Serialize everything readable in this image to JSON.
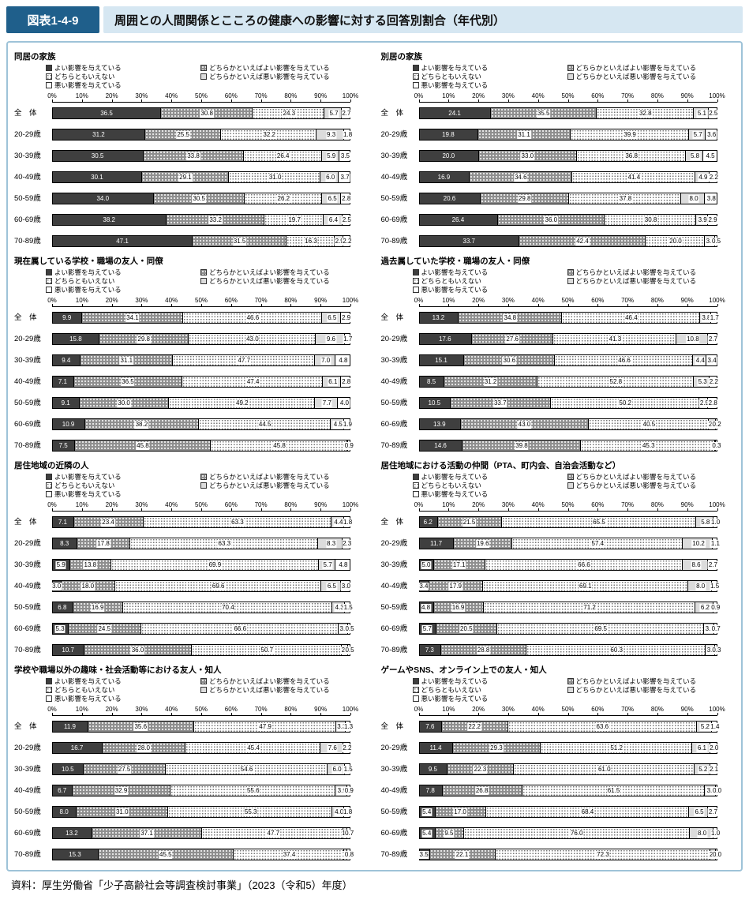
{
  "header": {
    "figure_label": "図表1-4-9",
    "title": "周囲との人間関係とこころの健康への影響に対する回答別割合（年代別）"
  },
  "source": "資料：厚生労働省「少子高齢社会等調査検討事業」（2023（令和5）年度）",
  "colors": {
    "header_box": "#1f5f8b",
    "header_strip": "#d6e7f2",
    "panel_border": "#9ec3d8",
    "segment_dark": "#3f3f3f",
    "segment_dot_gray": "#8f8f8f",
    "segment_light": "#dcdcdc"
  },
  "legend": {
    "items": [
      {
        "label": "よい影響を与えている",
        "pattern": "dark"
      },
      {
        "label": "どちらかといえばよい影響を与えている",
        "pattern": "dots-on-gray"
      },
      {
        "label": "どちらともいえない",
        "pattern": "stipple"
      },
      {
        "label": "どちらかといえば悪い影響を与えている",
        "pattern": "light-gray"
      },
      {
        "label": "悪い影響を与えている",
        "pattern": "white"
      }
    ]
  },
  "axis": {
    "ticks": [
      "0%",
      "10%",
      "20%",
      "30%",
      "40%",
      "50%",
      "60%",
      "70%",
      "80%",
      "90%",
      "100%"
    ]
  },
  "categories": [
    "全　体",
    "20-29歳",
    "30-39歳",
    "40-49歳",
    "50-59歳",
    "60-69歳",
    "70-89歳"
  ],
  "chart_data": [
    {
      "type": "bar",
      "stacked": true,
      "orientation": "horizontal",
      "xlim": [
        0,
        100
      ],
      "x_unit": "%",
      "title": "同居の家族",
      "categories": [
        "全　体",
        "20-29歳",
        "30-39歳",
        "40-49歳",
        "50-59歳",
        "60-69歳",
        "70-89歳"
      ],
      "series": [
        {
          "name": "よい影響を与えている",
          "values": [
            36.5,
            31.2,
            30.5,
            30.1,
            34.0,
            38.2,
            47.1
          ]
        },
        {
          "name": "どちらかといえばよい影響を与えている",
          "values": [
            30.8,
            25.5,
            33.8,
            29.1,
            30.5,
            33.2,
            31.5
          ]
        },
        {
          "name": "どちらともいえない",
          "values": [
            24.3,
            32.2,
            26.4,
            31.0,
            26.2,
            19.7,
            16.3
          ]
        },
        {
          "name": "どちらかといえば悪い影響を与えている",
          "values": [
            5.7,
            9.3,
            5.9,
            6.0,
            6.5,
            6.4,
            2.9
          ]
        },
        {
          "name": "悪い影響を与えている",
          "values": [
            2.7,
            1.8,
            3.5,
            3.7,
            2.8,
            2.5,
            2.2
          ]
        }
      ]
    },
    {
      "type": "bar",
      "stacked": true,
      "orientation": "horizontal",
      "xlim": [
        0,
        100
      ],
      "x_unit": "%",
      "title": "別居の家族",
      "categories": [
        "全　体",
        "20-29歳",
        "30-39歳",
        "40-49歳",
        "50-59歳",
        "60-69歳",
        "70-89歳"
      ],
      "series": [
        {
          "name": "よい影響を与えている",
          "values": [
            24.1,
            19.8,
            20.0,
            16.9,
            20.6,
            26.4,
            33.7
          ]
        },
        {
          "name": "どちらかといえばよい影響を与えている",
          "values": [
            35.5,
            31.1,
            33.0,
            34.6,
            29.8,
            36.0,
            42.4
          ]
        },
        {
          "name": "どちらともいえない",
          "values": [
            32.8,
            39.9,
            36.8,
            41.4,
            37.8,
            30.8,
            20.0
          ]
        },
        {
          "name": "どちらかといえば悪い影響を与えている",
          "values": [
            5.1,
            5.7,
            5.8,
            4.9,
            8.0,
            3.9,
            3.4
          ]
        },
        {
          "name": "悪い影響を与えている",
          "values": [
            2.5,
            3.6,
            4.5,
            2.2,
            3.8,
            2.9,
            0.5
          ]
        }
      ]
    },
    {
      "type": "bar",
      "stacked": true,
      "orientation": "horizontal",
      "xlim": [
        0,
        100
      ],
      "x_unit": "%",
      "title": "現在属している学校・職場の友人・同僚",
      "categories": [
        "全　体",
        "20-29歳",
        "30-39歳",
        "40-49歳",
        "50-59歳",
        "60-69歳",
        "70-89歳"
      ],
      "series": [
        {
          "name": "よい影響を与えている",
          "values": [
            9.9,
            15.8,
            9.4,
            7.1,
            9.1,
            10.9,
            7.5
          ]
        },
        {
          "name": "どちらかといえばよい影響を与えている",
          "values": [
            34.1,
            29.8,
            31.1,
            36.5,
            30.0,
            38.2,
            45.8
          ]
        },
        {
          "name": "どちらともいえない",
          "values": [
            46.6,
            43.0,
            47.7,
            47.4,
            49.2,
            44.5,
            45.8
          ]
        },
        {
          "name": "どちらかといえば悪い影響を与えている",
          "values": [
            6.5,
            9.6,
            7.0,
            6.1,
            7.7,
            4.5,
            0.0
          ]
        },
        {
          "name": "悪い影響を与えている",
          "values": [
            2.9,
            1.7,
            4.8,
            2.8,
            4.0,
            1.9,
            0.9
          ]
        }
      ]
    },
    {
      "type": "bar",
      "stacked": true,
      "orientation": "horizontal",
      "xlim": [
        0,
        100
      ],
      "x_unit": "%",
      "title": "過去属していた学校・職場の友人・同僚",
      "categories": [
        "全　体",
        "20-29歳",
        "30-39歳",
        "40-49歳",
        "50-59歳",
        "60-69歳",
        "70-89歳"
      ],
      "series": [
        {
          "name": "よい影響を与えている",
          "values": [
            13.2,
            17.6,
            15.1,
            8.5,
            10.5,
            13.9,
            14.6
          ]
        },
        {
          "name": "どちらかといえばよい影響を与えている",
          "values": [
            34.8,
            27.6,
            30.6,
            31.2,
            33.7,
            43.0,
            39.8
          ]
        },
        {
          "name": "どちらともいえない",
          "values": [
            46.4,
            41.3,
            46.6,
            52.8,
            50.2,
            40.5,
            45.3
          ]
        },
        {
          "name": "どちらかといえば悪い影響を与えている",
          "values": [
            3.8,
            10.8,
            4.4,
            5.3,
            2.9,
            2.3,
            0.0
          ]
        },
        {
          "name": "悪い影響を与えている",
          "values": [
            1.7,
            2.7,
            3.4,
            2.2,
            2.8,
            0.2,
            0.3
          ]
        }
      ]
    },
    {
      "type": "bar",
      "stacked": true,
      "orientation": "horizontal",
      "xlim": [
        0,
        100
      ],
      "x_unit": "%",
      "title": "居住地域の近隣の人",
      "categories": [
        "全　体",
        "20-29歳",
        "30-39歳",
        "40-49歳",
        "50-59歳",
        "60-69歳",
        "70-89歳"
      ],
      "series": [
        {
          "name": "よい影響を与えている",
          "values": [
            7.1,
            8.3,
            5.9,
            3.0,
            6.8,
            5.3,
            10.7
          ]
        },
        {
          "name": "どちらかといえばよい影響を与えている",
          "values": [
            23.4,
            17.8,
            13.8,
            18.0,
            16.9,
            24.5,
            36.0
          ]
        },
        {
          "name": "どちらともいえない",
          "values": [
            63.3,
            63.3,
            69.9,
            69.6,
            70.4,
            66.6,
            50.7
          ]
        },
        {
          "name": "どちらかといえば悪い影響を与えている",
          "values": [
            4.4,
            8.3,
            5.7,
            6.5,
            4.3,
            3.2,
            2.1
          ]
        },
        {
          "name": "悪い影響を与えている",
          "values": [
            1.8,
            2.3,
            4.8,
            3.0,
            1.5,
            0.5,
            0.5
          ]
        }
      ]
    },
    {
      "type": "bar",
      "stacked": true,
      "orientation": "horizontal",
      "xlim": [
        0,
        100
      ],
      "x_unit": "%",
      "title": "居住地域における活動の仲間（PTA、町内会、自治会活動など）",
      "categories": [
        "全　体",
        "20-29歳",
        "30-39歳",
        "40-49歳",
        "50-59歳",
        "60-69歳",
        "70-89歳"
      ],
      "series": [
        {
          "name": "よい影響を与えている",
          "values": [
            6.2,
            11.7,
            5.0,
            3.4,
            4.8,
            5.7,
            7.3
          ]
        },
        {
          "name": "どちらかといえばよい影響を与えている",
          "values": [
            21.5,
            19.6,
            17.1,
            17.9,
            16.9,
            20.5,
            28.8
          ]
        },
        {
          "name": "どちらともいえない",
          "values": [
            65.5,
            57.4,
            66.6,
            69.1,
            71.2,
            69.5,
            60.3
          ]
        },
        {
          "name": "どちらかといえば悪い影響を与えている",
          "values": [
            5.8,
            10.2,
            8.6,
            8.0,
            6.2,
            3.5,
            3.2
          ]
        },
        {
          "name": "悪い影響を与えている",
          "values": [
            1.0,
            1.1,
            2.7,
            1.5,
            0.9,
            0.7,
            0.3
          ]
        }
      ]
    },
    {
      "type": "bar",
      "stacked": true,
      "orientation": "horizontal",
      "xlim": [
        0,
        100
      ],
      "x_unit": "%",
      "title": "学校や職場以外の趣味・社会活動等における友人・知人",
      "categories": [
        "全　体",
        "20-29歳",
        "30-39歳",
        "40-49歳",
        "50-59歳",
        "60-69歳",
        "70-89歳"
      ],
      "series": [
        {
          "name": "よい影響を与えている",
          "values": [
            11.9,
            16.7,
            10.5,
            6.7,
            8.0,
            13.2,
            15.3
          ]
        },
        {
          "name": "どちらかといえばよい影響を与えている",
          "values": [
            35.6,
            28.0,
            27.5,
            32.9,
            31.0,
            37.1,
            45.5
          ]
        },
        {
          "name": "どちらともいえない",
          "values": [
            47.9,
            45.4,
            54.6,
            55.6,
            55.3,
            47.7,
            37.4
          ]
        },
        {
          "name": "どちらかといえば悪い影響を与えている",
          "values": [
            3.3,
            7.6,
            6.0,
            3.9,
            4.0,
            1.3,
            1.0
          ]
        },
        {
          "name": "悪い影響を与えている",
          "values": [
            1.3,
            2.2,
            1.5,
            0.9,
            1.8,
            0.7,
            0.8
          ]
        }
      ]
    },
    {
      "type": "bar",
      "stacked": true,
      "orientation": "horizontal",
      "xlim": [
        0,
        100
      ],
      "x_unit": "%",
      "title": "ゲームやSNS、オンライン上での友人・知人",
      "categories": [
        "全　体",
        "20-29歳",
        "30-39歳",
        "40-49歳",
        "50-59歳",
        "60-69歳",
        "70-89歳"
      ],
      "series": [
        {
          "name": "よい影響を与えている",
          "values": [
            7.6,
            11.4,
            9.5,
            7.8,
            5.4,
            5.4,
            3.5
          ]
        },
        {
          "name": "どちらかといえばよい影響を与えている",
          "values": [
            22.2,
            29.3,
            22.3,
            26.8,
            17.0,
            9.5,
            22.1
          ]
        },
        {
          "name": "どちらともいえない",
          "values": [
            63.6,
            51.2,
            61.0,
            61.5,
            68.4,
            76.0,
            72.3
          ]
        },
        {
          "name": "どちらかといえば悪い影響を与えている",
          "values": [
            5.2,
            6.1,
            5.2,
            3.9,
            6.5,
            8.0,
            2.1
          ]
        },
        {
          "name": "悪い影響を与えている",
          "values": [
            1.4,
            2.0,
            2.1,
            0.0,
            2.7,
            1.0,
            0.0
          ]
        }
      ]
    }
  ]
}
